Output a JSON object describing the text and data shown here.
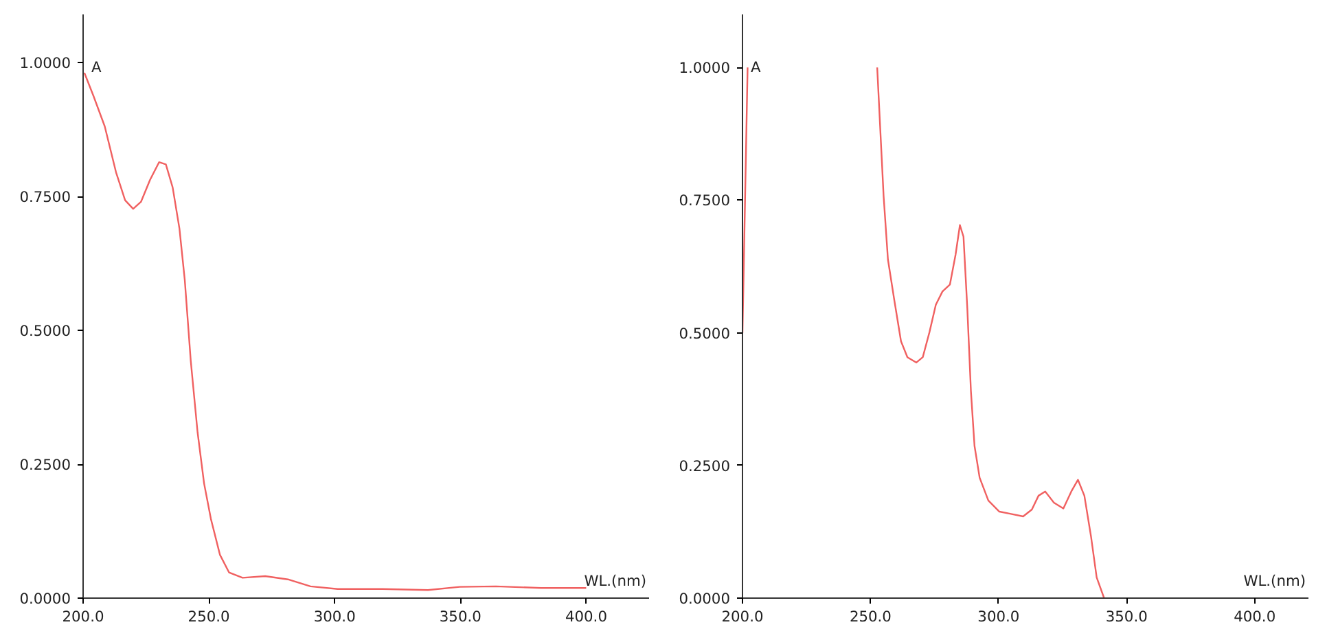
{
  "chart_data": [
    {
      "type": "line",
      "xlabel": "WL.(nm)",
      "ylabel": "A",
      "grid": false,
      "line_style": "solid",
      "marker": "none",
      "xlim": [
        200,
        425
      ],
      "ylim": [
        0,
        1.09
      ],
      "xticks": [
        {
          "value": 200,
          "label": "200.0"
        },
        {
          "value": 250,
          "label": "250.0"
        },
        {
          "value": 300,
          "label": "300.0"
        },
        {
          "value": 350,
          "label": "350.0"
        },
        {
          "value": 400,
          "label": "400.0"
        }
      ],
      "yticks": [
        {
          "value": 0,
          "label": "0.0000"
        },
        {
          "value": 0.25,
          "label": "0.2500"
        },
        {
          "value": 0.5,
          "label": "0.5000"
        },
        {
          "value": 0.75,
          "label": "0.7500"
        },
        {
          "value": 1,
          "label": "1.0000"
        }
      ],
      "series": [
        {
          "color": "#f06060",
          "x": [
            200.5,
            204.1,
            208.6,
            213.1,
            216.7,
            219.9,
            223.0,
            226.6,
            230.2,
            232.9,
            235.6,
            238.3,
            240.4,
            242.8,
            245.5,
            248.1,
            250.8,
            254.4,
            258.0,
            263.4,
            272.4,
            281.4,
            290.4,
            301.2,
            319.1,
            337.1,
            349.7,
            364.1,
            382.0,
            400.0
          ],
          "values": [
            0.981,
            0.938,
            0.881,
            0.795,
            0.743,
            0.727,
            0.74,
            0.781,
            0.814,
            0.81,
            0.767,
            0.69,
            0.595,
            0.443,
            0.31,
            0.214,
            0.148,
            0.081,
            0.048,
            0.038,
            0.041,
            0.035,
            0.022,
            0.017,
            0.017,
            0.015,
            0.021,
            0.022,
            0.019,
            0.019
          ]
        }
      ]
    },
    {
      "type": "line",
      "xlabel": "WL.(nm)",
      "ylabel": "A",
      "grid": false,
      "line_style": "solid",
      "marker": "none",
      "xlim": [
        200,
        421
      ],
      "ylim": [
        0,
        1.1
      ],
      "xticks": [
        {
          "value": 200,
          "label": "200.0"
        },
        {
          "value": 250,
          "label": "250.0"
        },
        {
          "value": 300,
          "label": "300.0"
        },
        {
          "value": 350,
          "label": "350.0"
        },
        {
          "value": 400,
          "label": "400.0"
        }
      ],
      "yticks": [
        {
          "value": 0,
          "label": "0.0000"
        },
        {
          "value": 0.25,
          "label": "0.2500"
        },
        {
          "value": 0.5,
          "label": "0.5000"
        },
        {
          "value": 0.75,
          "label": "0.7500"
        },
        {
          "value": 1,
          "label": "1.0000"
        }
      ],
      "series": [
        {
          "color": "#f06060",
          "x": [
            200.0,
            201.0,
            202.0,
            227.0,
            252.6,
            255.1,
            256.8,
            259.3,
            261.9,
            264.4,
            267.9,
            270.4,
            273.0,
            275.5,
            278.1,
            281.0,
            283.2,
            284.9,
            286.3,
            287.8,
            289.2,
            290.6,
            292.6,
            296.0,
            300.3,
            304.5,
            309.6,
            313.0,
            315.6,
            318.2,
            321.6,
            325.3,
            328.4,
            331.0,
            333.5,
            336.1,
            338.3,
            341.2
          ],
          "values": [
            0.5,
            0.75,
            1.0,
            null,
            1.0,
            0.758,
            0.638,
            0.561,
            0.484,
            0.454,
            0.444,
            0.454,
            0.501,
            0.553,
            0.578,
            0.591,
            0.647,
            0.703,
            0.681,
            0.545,
            0.39,
            0.287,
            0.227,
            0.184,
            0.163,
            0.159,
            0.154,
            0.167,
            0.193,
            0.201,
            0.18,
            0.169,
            0.201,
            0.223,
            0.193,
            0.116,
            0.039,
            0.0
          ]
        }
      ]
    }
  ]
}
